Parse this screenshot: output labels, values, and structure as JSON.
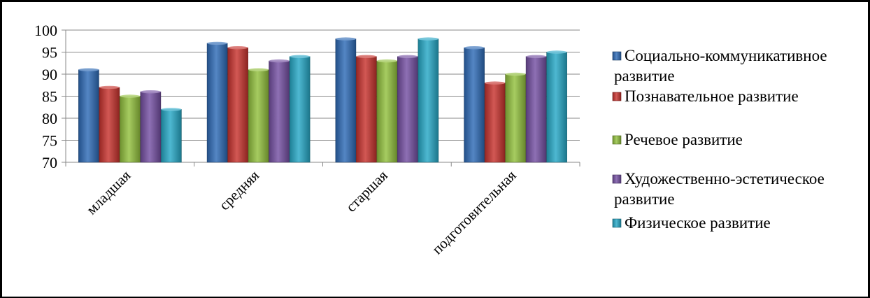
{
  "chart_data": {
    "type": "bar",
    "categories": [
      "младшая",
      "средняя",
      "старшая",
      "подготовительная"
    ],
    "series": [
      {
        "name": "Социально-коммуникативное развитие",
        "name_lines": [
          "Социально-коммуникативное",
          "развитие"
        ],
        "color": "#2E6BB7",
        "values": [
          91,
          97,
          98,
          96
        ]
      },
      {
        "name": "Познавательное развитие",
        "name_lines": [
          "Познавательное развитие"
        ],
        "color": "#C8332E",
        "values": [
          87,
          96,
          94,
          88
        ]
      },
      {
        "name": "Речевое развитие",
        "name_lines": [
          "Речевое развитие"
        ],
        "color": "#93C13E",
        "values": [
          85,
          91,
          93,
          90
        ]
      },
      {
        "name": "Художественно-эстетическое развитие",
        "name_lines": [
          "Художественно-эстетическое",
          "развитие"
        ],
        "color": "#7550A3",
        "values": [
          86,
          93,
          94,
          94
        ]
      },
      {
        "name": "Физическое развитие",
        "name_lines": [
          "Физическое развитие"
        ],
        "color": "#27A9C7",
        "values": [
          82,
          94,
          98,
          95
        ]
      }
    ],
    "yticks": [
      "70",
      "75",
      "80",
      "85",
      "90",
      "95",
      "100"
    ],
    "ylim": [
      70,
      100
    ],
    "grid": true,
    "legend": "right",
    "title": "",
    "xlabel": "",
    "ylabel": ""
  }
}
